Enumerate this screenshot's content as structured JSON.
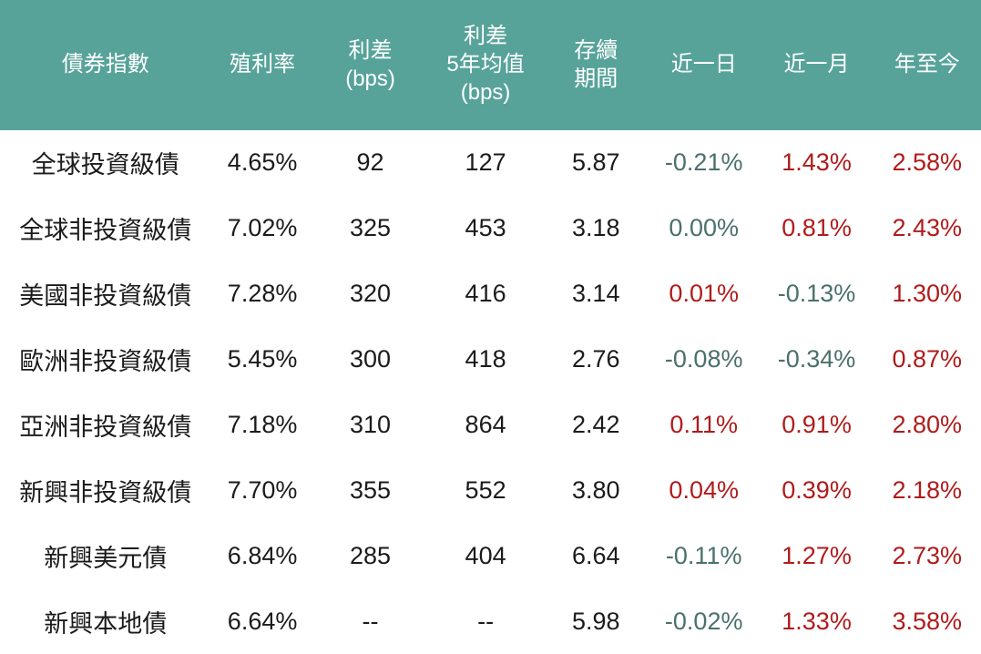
{
  "colors": {
    "header_bg": "#57A39A",
    "header_text": "#FFFFFF",
    "body_text": "#1B1B1B",
    "positive_value": "#B01B1B",
    "negative_value": "#4A706D",
    "row_bg": "#FFFFFF"
  },
  "table": {
    "columns": [
      {
        "key": "name",
        "label": "債券指數",
        "width_pct": 21.5,
        "change_column": false
      },
      {
        "key": "yield",
        "label": "殖利率",
        "width_pct": 10.5,
        "change_column": false
      },
      {
        "key": "spread",
        "label": "利差\n(bps)",
        "width_pct": 11.5,
        "change_column": false
      },
      {
        "key": "spread_5y_avg",
        "label": "利差\n5年均值\n(bps)",
        "width_pct": 12.0,
        "change_column": false
      },
      {
        "key": "duration",
        "label": "存續\n期間",
        "width_pct": 10.5,
        "change_column": false
      },
      {
        "key": "chg_1d",
        "label": "近一日",
        "width_pct": 11.5,
        "change_column": true
      },
      {
        "key": "chg_1m",
        "label": "近一月",
        "width_pct": 11.5,
        "change_column": true
      },
      {
        "key": "chg_ytd",
        "label": "年至今",
        "width_pct": 11.0,
        "change_column": true
      }
    ],
    "rows": [
      {
        "name": "全球投資級債",
        "yield": "4.65%",
        "spread": "92",
        "spread_5y_avg": "127",
        "duration": "5.87",
        "chg_1d": "-0.21%",
        "chg_1m": "1.43%",
        "chg_ytd": "2.58%"
      },
      {
        "name": "全球非投資級債",
        "yield": "7.02%",
        "spread": "325",
        "spread_5y_avg": "453",
        "duration": "3.18",
        "chg_1d": "0.00%",
        "chg_1m": "0.81%",
        "chg_ytd": "2.43%"
      },
      {
        "name": "美國非投資級債",
        "yield": "7.28%",
        "spread": "320",
        "spread_5y_avg": "416",
        "duration": "3.14",
        "chg_1d": "0.01%",
        "chg_1m": "-0.13%",
        "chg_ytd": "1.30%"
      },
      {
        "name": "歐洲非投資級債",
        "yield": "5.45%",
        "spread": "300",
        "spread_5y_avg": "418",
        "duration": "2.76",
        "chg_1d": "-0.08%",
        "chg_1m": "-0.34%",
        "chg_ytd": "0.87%"
      },
      {
        "name": "亞洲非投資級債",
        "yield": "7.18%",
        "spread": "310",
        "spread_5y_avg": "864",
        "duration": "2.42",
        "chg_1d": "0.11%",
        "chg_1m": "0.91%",
        "chg_ytd": "2.80%"
      },
      {
        "name": "新興非投資級債",
        "yield": "7.70%",
        "spread": "355",
        "spread_5y_avg": "552",
        "duration": "3.80",
        "chg_1d": "0.04%",
        "chg_1m": "0.39%",
        "chg_ytd": "2.18%"
      },
      {
        "name": "新興美元債",
        "yield": "6.84%",
        "spread": "285",
        "spread_5y_avg": "404",
        "duration": "6.64",
        "chg_1d": "-0.11%",
        "chg_1m": "1.27%",
        "chg_ytd": "2.73%"
      },
      {
        "name": "新興本地債",
        "yield": "6.64%",
        "spread": "--",
        "spread_5y_avg": "--",
        "duration": "5.98",
        "chg_1d": "-0.02%",
        "chg_1m": "1.33%",
        "chg_ytd": "3.58%"
      }
    ]
  },
  "chart_data": {
    "type": "table",
    "title": "",
    "columns": [
      "債券指數",
      "殖利率",
      "利差(bps)",
      "利差5年均值(bps)",
      "存續期間",
      "近一日",
      "近一月",
      "年至今"
    ],
    "rows": [
      [
        "全球投資級債",
        "4.65%",
        "92",
        "127",
        "5.87",
        "-0.21%",
        "1.43%",
        "2.58%"
      ],
      [
        "全球非投資級債",
        "7.02%",
        "325",
        "453",
        "3.18",
        "0.00%",
        "0.81%",
        "2.43%"
      ],
      [
        "美國非投資級債",
        "7.28%",
        "320",
        "416",
        "3.14",
        "0.01%",
        "-0.13%",
        "1.30%"
      ],
      [
        "歐洲非投資級債",
        "5.45%",
        "300",
        "418",
        "2.76",
        "-0.08%",
        "-0.34%",
        "0.87%"
      ],
      [
        "亞洲非投資級債",
        "7.18%",
        "310",
        "864",
        "2.42",
        "0.11%",
        "0.91%",
        "2.80%"
      ],
      [
        "新興非投資級債",
        "7.70%",
        "355",
        "552",
        "3.80",
        "0.04%",
        "0.39%",
        "2.18%"
      ],
      [
        "新興美元債",
        "6.84%",
        "285",
        "404",
        "6.64",
        "-0.11%",
        "1.27%",
        "2.73%"
      ],
      [
        "新興本地債",
        "6.64%",
        "--",
        "--",
        "5.98",
        "-0.02%",
        "1.33%",
        "3.58%"
      ]
    ],
    "layout_hints": {
      "header_background": "#57A39A",
      "positive_change_color": "#B01B1B",
      "negative_or_zero_change_color": "#4A706D",
      "grid": "off",
      "cell_alignment": "center"
    }
  }
}
